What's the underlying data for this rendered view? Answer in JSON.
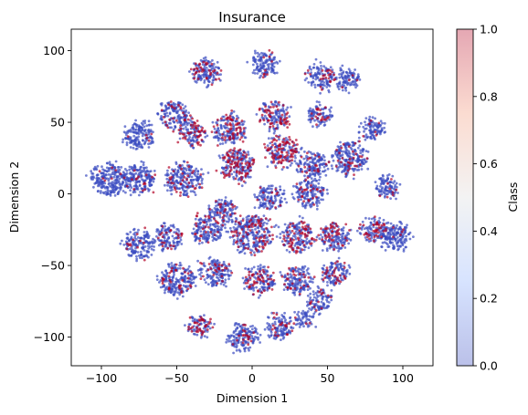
{
  "chart_data": {
    "type": "scatter",
    "title": "Insurance",
    "xlabel": "Dimension 1",
    "ylabel": "Dimension 2",
    "xlim": [
      -120,
      120
    ],
    "ylim": [
      -120,
      115
    ],
    "xticks": [
      -100,
      -50,
      0,
      50,
      100
    ],
    "yticks": [
      -100,
      -50,
      0,
      50,
      100
    ],
    "colorbar": {
      "label": "Class",
      "range": [
        0.0,
        1.0
      ],
      "ticks": [
        "0.0",
        "0.2",
        "0.4",
        "0.6",
        "0.8",
        "1.0"
      ],
      "colormap": "coolwarm",
      "low_color": "#3b4cc0",
      "mid_color": "#dddddd",
      "high_color": "#b40426"
    },
    "point_alpha": 0.7,
    "classes": [
      0,
      1
    ],
    "clusters": [
      {
        "x": -30,
        "y": 85,
        "r": 10,
        "frac1": 0.15
      },
      {
        "x": 8,
        "y": 90,
        "r": 9,
        "frac1": 0.1
      },
      {
        "x": 45,
        "y": 82,
        "r": 9,
        "frac1": 0.15
      },
      {
        "x": 63,
        "y": 80,
        "r": 8,
        "frac1": 0.1
      },
      {
        "x": -75,
        "y": 40,
        "r": 10,
        "frac1": 0.05
      },
      {
        "x": -52,
        "y": 55,
        "r": 10,
        "frac1": 0.15
      },
      {
        "x": -40,
        "y": 42,
        "r": 9,
        "frac1": 0.4
      },
      {
        "x": -15,
        "y": 45,
        "r": 11,
        "frac1": 0.3
      },
      {
        "x": 15,
        "y": 55,
        "r": 10,
        "frac1": 0.3
      },
      {
        "x": 45,
        "y": 55,
        "r": 8,
        "frac1": 0.15
      },
      {
        "x": 80,
        "y": 45,
        "r": 8,
        "frac1": 0.05
      },
      {
        "x": -95,
        "y": 10,
        "r": 12,
        "frac1": 0.05
      },
      {
        "x": -75,
        "y": 10,
        "r": 11,
        "frac1": 0.1
      },
      {
        "x": -45,
        "y": 10,
        "r": 12,
        "frac1": 0.15
      },
      {
        "x": -10,
        "y": 20,
        "r": 12,
        "frac1": 0.4
      },
      {
        "x": 20,
        "y": 30,
        "r": 11,
        "frac1": 0.5
      },
      {
        "x": 40,
        "y": 20,
        "r": 10,
        "frac1": 0.15
      },
      {
        "x": 65,
        "y": 25,
        "r": 12,
        "frac1": 0.1
      },
      {
        "x": 90,
        "y": 5,
        "r": 8,
        "frac1": 0.05
      },
      {
        "x": 12,
        "y": -2,
        "r": 9,
        "frac1": 0.1
      },
      {
        "x": 38,
        "y": 0,
        "r": 10,
        "frac1": 0.1
      },
      {
        "x": -20,
        "y": -12,
        "r": 9,
        "frac1": 0.2
      },
      {
        "x": -75,
        "y": -35,
        "r": 10,
        "frac1": 0.05
      },
      {
        "x": -55,
        "y": -30,
        "r": 9,
        "frac1": 0.1
      },
      {
        "x": -30,
        "y": -25,
        "r": 10,
        "frac1": 0.15
      },
      {
        "x": 0,
        "y": -28,
        "r": 14,
        "frac1": 0.2
      },
      {
        "x": 30,
        "y": -30,
        "r": 11,
        "frac1": 0.35
      },
      {
        "x": 55,
        "y": -30,
        "r": 10,
        "frac1": 0.3
      },
      {
        "x": 80,
        "y": -25,
        "r": 9,
        "frac1": 0.3
      },
      {
        "x": 95,
        "y": -30,
        "r": 10,
        "frac1": 0.05
      },
      {
        "x": -50,
        "y": -60,
        "r": 12,
        "frac1": 0.15
      },
      {
        "x": -25,
        "y": -55,
        "r": 10,
        "frac1": 0.15
      },
      {
        "x": 5,
        "y": -60,
        "r": 10,
        "frac1": 0.3
      },
      {
        "x": 30,
        "y": -60,
        "r": 10,
        "frac1": 0.2
      },
      {
        "x": 55,
        "y": -55,
        "r": 9,
        "frac1": 0.2
      },
      {
        "x": 45,
        "y": -75,
        "r": 8,
        "frac1": 0.15
      },
      {
        "x": -35,
        "y": -92,
        "r": 8,
        "frac1": 0.3
      },
      {
        "x": -5,
        "y": -100,
        "r": 10,
        "frac1": 0.1
      },
      {
        "x": 18,
        "y": -92,
        "r": 9,
        "frac1": 0.15
      },
      {
        "x": 35,
        "y": -88,
        "r": 6,
        "frac1": 0.05
      }
    ]
  }
}
